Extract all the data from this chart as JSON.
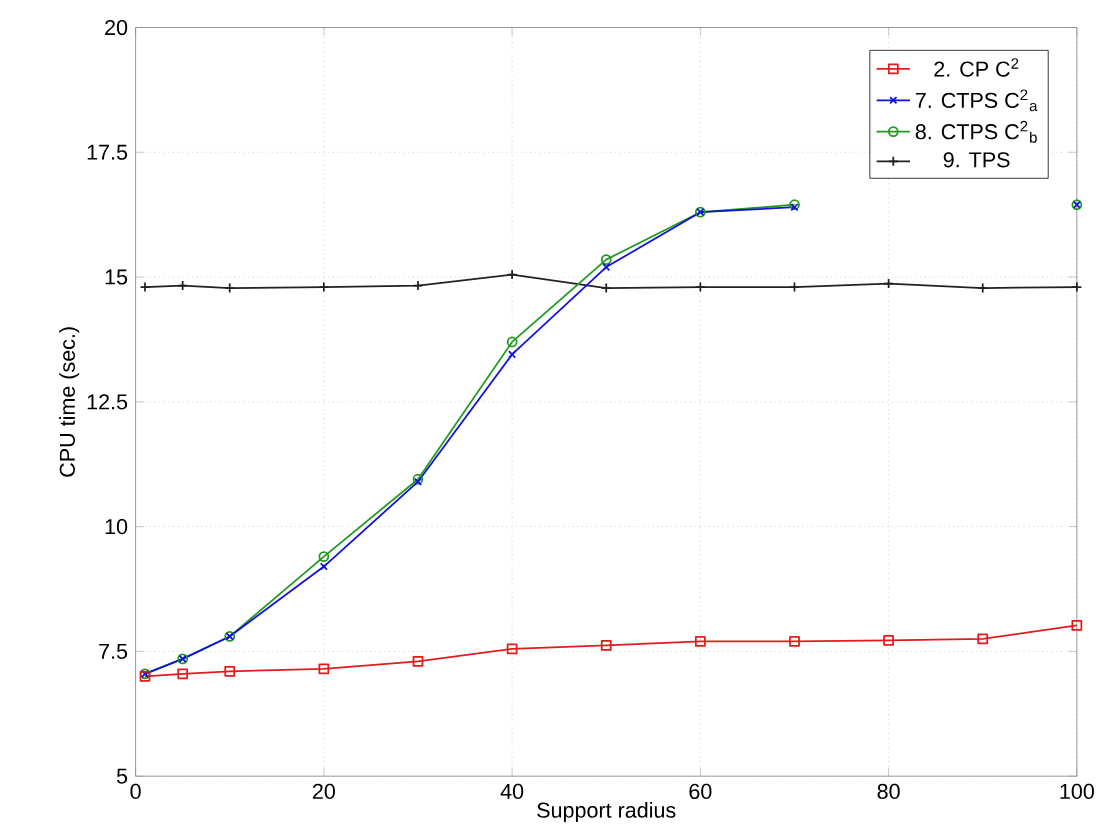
{
  "chart_data": {
    "type": "line",
    "xlabel": "Support radius",
    "ylabel": "CPU time (sec.)",
    "x": [
      1,
      5,
      10,
      20,
      30,
      40,
      50,
      60,
      70,
      80,
      90,
      100
    ],
    "series": [
      {
        "name": "2. CP C$^{2}$",
        "color": "#e41a1c",
        "marker": "square",
        "values": [
          7.0,
          7.05,
          7.1,
          7.15,
          7.3,
          7.55,
          7.62,
          7.7,
          7.7,
          7.72,
          7.75,
          8.02
        ]
      },
      {
        "name": "7. CTPS C$^{2}$$_{a}$",
        "color": "#1010e0",
        "marker": "cross",
        "values": [
          7.05,
          7.35,
          7.8,
          9.2,
          10.9,
          13.45,
          15.2,
          16.3,
          16.4,
          null,
          null,
          16.45
        ]
      },
      {
        "name": "8. CTPS C$^{2}$$_{b}$",
        "color": "#1f9a1f",
        "marker": "circle",
        "values": [
          7.05,
          7.35,
          7.8,
          9.4,
          10.95,
          13.7,
          15.35,
          16.3,
          16.45,
          null,
          null,
          16.45
        ]
      },
      {
        "name": "9. TPS",
        "color": "#222222",
        "marker": "plus",
        "values": [
          14.8,
          14.83,
          14.78,
          14.8,
          14.83,
          15.05,
          14.78,
          14.8,
          14.8,
          14.87,
          14.78,
          14.8
        ]
      }
    ],
    "xlim": [
      0,
      100
    ],
    "ylim": [
      5,
      20
    ],
    "xticks": [
      0,
      20,
      40,
      60,
      80,
      100
    ],
    "yticks": [
      5,
      {
        "value": 7.5,
        "label": "7.5"
      },
      10,
      {
        "value": 12.5,
        "label": "12.5"
      },
      15,
      {
        "value": 17.5,
        "label": "17.5"
      },
      20
    ],
    "grid": true,
    "legend": "top right",
    "line_style": "solid"
  }
}
